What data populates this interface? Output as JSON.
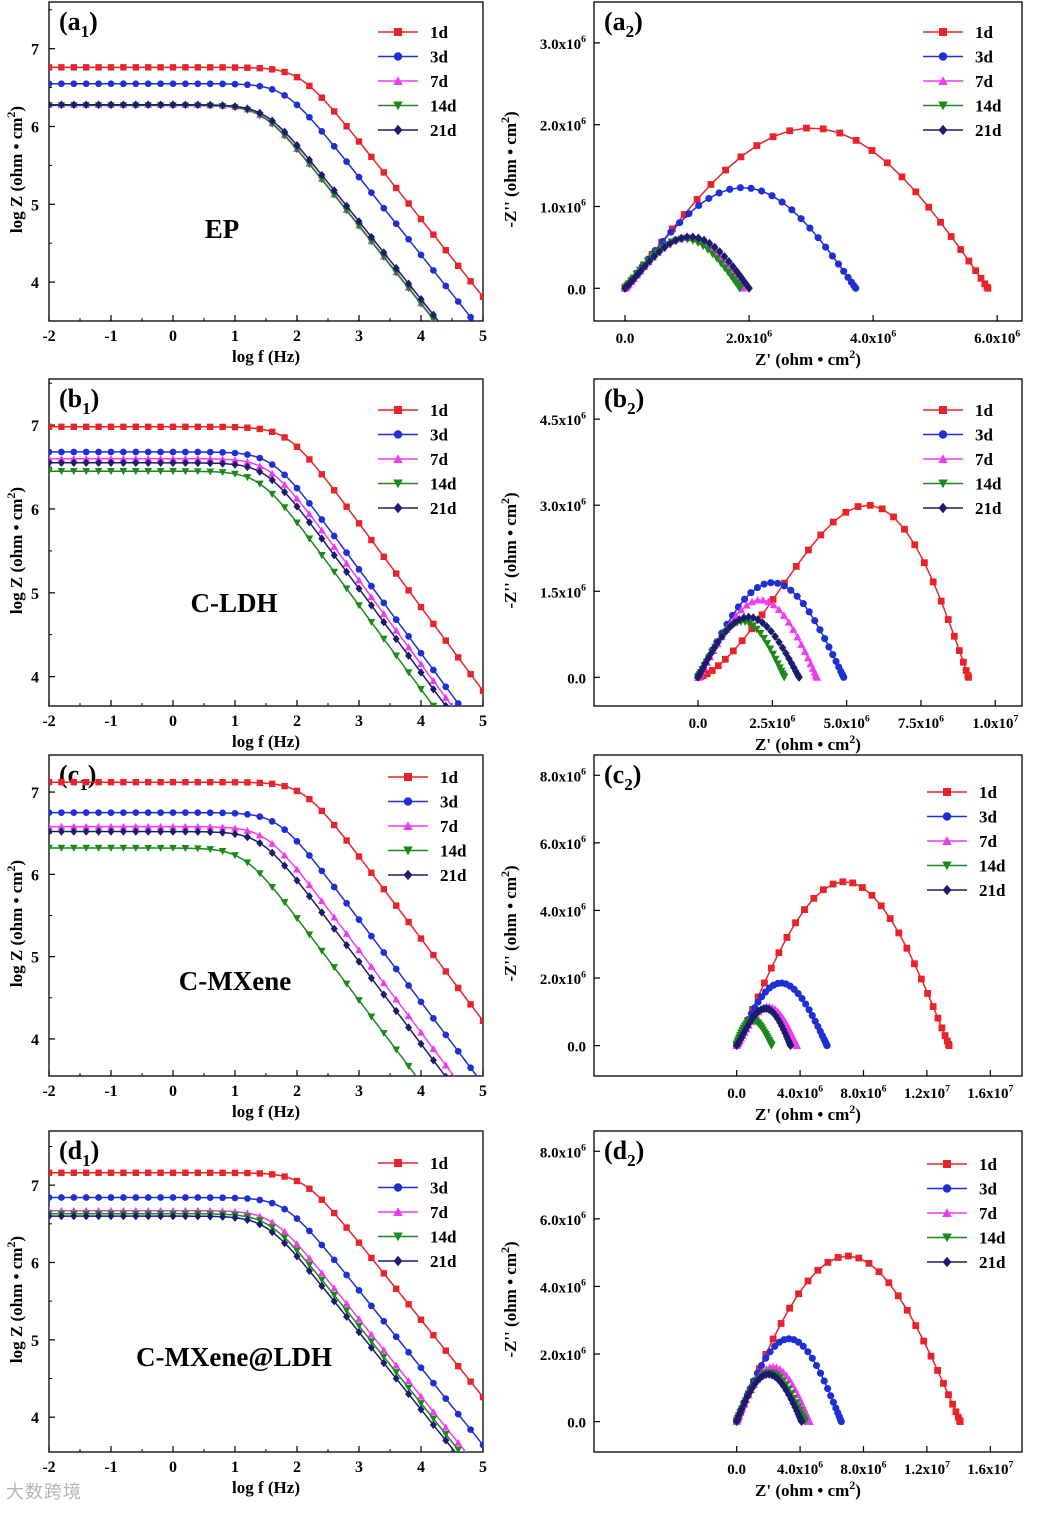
{
  "watermark": "大数跨境",
  "bode_xaxis": {
    "label_main": "log f",
    "label_unit": "(Hz)",
    "ticks": [
      "-2",
      "-1",
      "0",
      "1",
      "2",
      "3",
      "4",
      "5"
    ]
  },
  "bode_yaxis": {
    "label_main": "log Z",
    "label_unit": "(ohm • cm",
    "label_sup": "2",
    "label_close": ")"
  },
  "nyq_xaxis": {
    "label_main": "Z'",
    "label_unit": "(ohm • cm",
    "label_sup": "2",
    "label_close": ")"
  },
  "nyq_yaxis": {
    "label_main": "-Z''",
    "label_unit": "(ohm • cm",
    "label_sup": "2",
    "label_close": ")"
  },
  "legend": [
    "1d",
    "3d",
    "7d",
    "14d",
    "21d"
  ],
  "colors": [
    "#e8242a",
    "#1f2fd6",
    "#f03cf0",
    "#1a8a1a",
    "#1c1c6e"
  ],
  "markers": [
    "square",
    "circle",
    "triangle-up",
    "triangle-down",
    "diamond"
  ],
  "chart_data": [
    {
      "id": "a1",
      "type": "line",
      "panel_letter": "a",
      "panel_index": "1",
      "annotation": "EP",
      "xlim": [
        -2,
        5
      ],
      "ylim": [
        3.5,
        7.6
      ],
      "yticks": [
        4,
        5,
        6,
        7
      ],
      "series": [
        {
          "name": "1d",
          "low_freq_logZ": 6.76,
          "break_logf": 2.05
        },
        {
          "name": "3d",
          "low_freq_logZ": 6.55,
          "break_logf": 1.8
        },
        {
          "name": "7d",
          "low_freq_logZ": 6.28,
          "break_logf": 1.45
        },
        {
          "name": "14d",
          "low_freq_logZ": 6.27,
          "break_logf": 1.45
        },
        {
          "name": "21d",
          "low_freq_logZ": 6.28,
          "break_logf": 1.5
        }
      ]
    },
    {
      "id": "a2",
      "type": "scatter",
      "panel_letter": "a",
      "panel_index": "2",
      "xlim": [
        -0.5,
        6.4
      ],
      "ylim": [
        -0.4,
        3.5
      ],
      "xticks": [
        {
          "v": 0,
          "t": "0.0"
        },
        {
          "v": 2,
          "t": "2.0x10",
          "e": "6"
        },
        {
          "v": 4,
          "t": "4.0x10",
          "e": "6"
        },
        {
          "v": 6,
          "t": "6.0x10",
          "e": "6"
        }
      ],
      "yticks": [
        {
          "v": 0,
          "t": "0.0"
        },
        {
          "v": 1,
          "t": "1.0x10",
          "e": "6"
        },
        {
          "v": 2,
          "t": "2.0x10",
          "e": "6"
        },
        {
          "v": 3,
          "t": "3.0x10",
          "e": "6"
        }
      ],
      "series": [
        {
          "name": "1d",
          "Z_real_max": 5.85,
          "Z_imag_peak": 1.96,
          "peak_Z_real": 3.0
        },
        {
          "name": "3d",
          "Z_real_max": 3.72,
          "Z_imag_peak": 1.23,
          "peak_Z_real": 1.9
        },
        {
          "name": "7d",
          "Z_real_max": 1.9,
          "Z_imag_peak": 0.62,
          "peak_Z_real": 1.0
        },
        {
          "name": "14d",
          "Z_real_max": 1.85,
          "Z_imag_peak": 0.6,
          "peak_Z_real": 0.95
        },
        {
          "name": "21d",
          "Z_real_max": 2.0,
          "Z_imag_peak": 0.63,
          "peak_Z_real": 1.05
        }
      ]
    },
    {
      "id": "b1",
      "type": "line",
      "panel_letter": "b",
      "panel_index": "1",
      "annotation": "C-LDH",
      "xlim": [
        -2,
        5
      ],
      "ylim": [
        3.65,
        7.55
      ],
      "yticks": [
        4,
        5,
        6,
        7
      ],
      "series": [
        {
          "name": "1d",
          "low_freq_logZ": 6.98,
          "break_logf": 1.85
        },
        {
          "name": "3d",
          "low_freq_logZ": 6.68,
          "break_logf": 1.6
        },
        {
          "name": "7d",
          "low_freq_logZ": 6.6,
          "break_logf": 1.55
        },
        {
          "name": "14d",
          "low_freq_logZ": 6.45,
          "break_logf": 1.4
        },
        {
          "name": "21d",
          "low_freq_logZ": 6.55,
          "break_logf": 1.5
        }
      ]
    },
    {
      "id": "b2",
      "type": "scatter",
      "panel_letter": "b",
      "panel_index": "2",
      "xlim": [
        -0.35,
        1.09
      ],
      "ylim": [
        -0.5,
        5.2
      ],
      "xticks": [
        {
          "v": 0,
          "t": "0.0"
        },
        {
          "v": 0.25,
          "t": "2.5x10",
          "e": "6"
        },
        {
          "v": 0.5,
          "t": "5.0x10",
          "e": "6"
        },
        {
          "v": 0.75,
          "t": "7.5x10",
          "e": "6"
        },
        {
          "v": 1.0,
          "t": "1.0x10",
          "e": "7"
        }
      ],
      "yticks": [
        {
          "v": 0,
          "t": "0.0"
        },
        {
          "v": 1.5,
          "t": "1.5x10",
          "e": "6"
        },
        {
          "v": 3,
          "t": "3.0x10",
          "e": "6"
        },
        {
          "v": 4.5,
          "t": "4.5x10",
          "e": "6"
        }
      ],
      "series": [
        {
          "name": "1d",
          "Z_real_max": 0.91,
          "Z_imag_peak": 3.0,
          "peak_Z_real": 0.57
        },
        {
          "name": "3d",
          "Z_real_max": 0.49,
          "Z_imag_peak": 1.65,
          "peak_Z_real": 0.25
        },
        {
          "name": "7d",
          "Z_real_max": 0.4,
          "Z_imag_peak": 1.35,
          "peak_Z_real": 0.21
        },
        {
          "name": "14d",
          "Z_real_max": 0.29,
          "Z_imag_peak": 0.97,
          "peak_Z_real": 0.15
        },
        {
          "name": "21d",
          "Z_real_max": 0.34,
          "Z_imag_peak": 1.05,
          "peak_Z_real": 0.17
        }
      ]
    },
    {
      "id": "c1",
      "type": "line",
      "panel_letter": "c",
      "panel_index": "1",
      "annotation": "C-MXene",
      "xlim": [
        -2,
        5
      ],
      "ylim": [
        3.55,
        7.45
      ],
      "yticks": [
        4,
        5,
        6,
        7
      ],
      "series": [
        {
          "name": "1d",
          "low_freq_logZ": 7.12,
          "break_logf": 2.1
        },
        {
          "name": "3d",
          "low_freq_logZ": 6.75,
          "break_logf": 1.7
        },
        {
          "name": "7d",
          "low_freq_logZ": 6.58,
          "break_logf": 1.5
        },
        {
          "name": "14d",
          "low_freq_logZ": 6.32,
          "break_logf": 1.15
        },
        {
          "name": "21d",
          "low_freq_logZ": 6.52,
          "break_logf": 1.42
        }
      ]
    },
    {
      "id": "c2",
      "type": "scatter",
      "panel_letter": "c",
      "panel_index": "2",
      "xlim": [
        -0.9,
        1.8
      ],
      "ylim": [
        -0.9,
        8.6
      ],
      "xticks": [
        {
          "v": 0,
          "t": "0.0"
        },
        {
          "v": 0.4,
          "t": "4.0x10",
          "e": "6"
        },
        {
          "v": 0.8,
          "t": "8.0x10",
          "e": "6"
        },
        {
          "v": 1.2,
          "t": "1.2x10",
          "e": "7"
        },
        {
          "v": 1.6,
          "t": "1.6x10",
          "e": "7"
        }
      ],
      "yticks": [
        {
          "v": 0,
          "t": "0.0"
        },
        {
          "v": 2,
          "t": "2.0x10",
          "e": "6"
        },
        {
          "v": 4,
          "t": "4.0x10",
          "e": "6"
        },
        {
          "v": 6,
          "t": "6.0x10",
          "e": "6"
        },
        {
          "v": 8,
          "t": "8.0x10",
          "e": "6"
        }
      ],
      "series": [
        {
          "name": "1d",
          "Z_real_max": 1.34,
          "Z_imag_peak": 4.85,
          "peak_Z_real": 0.68
        },
        {
          "name": "3d",
          "Z_real_max": 0.57,
          "Z_imag_peak": 1.85,
          "peak_Z_real": 0.28
        },
        {
          "name": "7d",
          "Z_real_max": 0.38,
          "Z_imag_peak": 1.15,
          "peak_Z_real": 0.2
        },
        {
          "name": "14d",
          "Z_real_max": 0.22,
          "Z_imag_peak": 0.75,
          "peak_Z_real": 0.1
        },
        {
          "name": "21d",
          "Z_real_max": 0.34,
          "Z_imag_peak": 1.1,
          "peak_Z_real": 0.18
        }
      ]
    },
    {
      "id": "d1",
      "type": "line",
      "panel_letter": "d",
      "panel_index": "1",
      "annotation": "C-MXene@LDH",
      "xlim": [
        -2,
        5
      ],
      "ylim": [
        3.55,
        7.7
      ],
      "yticks": [
        4,
        5,
        6,
        7
      ],
      "series": [
        {
          "name": "1d",
          "low_freq_logZ": 7.16,
          "break_logf": 2.1
        },
        {
          "name": "3d",
          "low_freq_logZ": 6.84,
          "break_logf": 1.8
        },
        {
          "name": "7d",
          "low_freq_logZ": 6.67,
          "break_logf": 1.6
        },
        {
          "name": "14d",
          "low_freq_logZ": 6.63,
          "break_logf": 1.55
        },
        {
          "name": "21d",
          "low_freq_logZ": 6.6,
          "break_logf": 1.5
        }
      ]
    },
    {
      "id": "d2",
      "type": "scatter",
      "panel_letter": "d",
      "panel_index": "2",
      "xlim": [
        -0.9,
        1.8
      ],
      "ylim": [
        -0.9,
        8.6
      ],
      "xticks": [
        {
          "v": 0,
          "t": "0.0"
        },
        {
          "v": 0.4,
          "t": "4.0x10",
          "e": "6"
        },
        {
          "v": 0.8,
          "t": "8.0x10",
          "e": "6"
        },
        {
          "v": 1.2,
          "t": "1.2x10",
          "e": "7"
        },
        {
          "v": 1.6,
          "t": "1.6x10",
          "e": "7"
        }
      ],
      "yticks": [
        {
          "v": 0,
          "t": "0.0"
        },
        {
          "v": 2,
          "t": "2.0x10",
          "e": "6"
        },
        {
          "v": 4,
          "t": "4.0x10",
          "e": "6"
        },
        {
          "v": 6,
          "t": "6.0x10",
          "e": "6"
        },
        {
          "v": 8,
          "t": "8.0x10",
          "e": "6"
        }
      ],
      "series": [
        {
          "name": "1d",
          "Z_real_max": 1.41,
          "Z_imag_peak": 4.9,
          "peak_Z_real": 0.7
        },
        {
          "name": "3d",
          "Z_real_max": 0.66,
          "Z_imag_peak": 2.45,
          "peak_Z_real": 0.33
        },
        {
          "name": "7d",
          "Z_real_max": 0.46,
          "Z_imag_peak": 1.62,
          "peak_Z_real": 0.23
        },
        {
          "name": "14d",
          "Z_real_max": 0.43,
          "Z_imag_peak": 1.45,
          "peak_Z_real": 0.21
        },
        {
          "name": "21d",
          "Z_real_max": 0.41,
          "Z_imag_peak": 1.4,
          "peak_Z_real": 0.2
        }
      ]
    }
  ]
}
